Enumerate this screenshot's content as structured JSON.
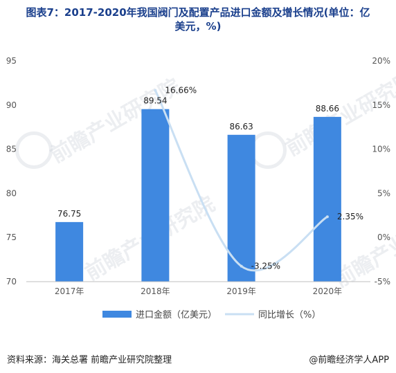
{
  "title_line1": "图表7：2017-2020年我国阀门及配置产品进口金额及增长情况(单位：亿",
  "title_line2": "美元，%)",
  "watermark": "前瞻产业研究院",
  "source": "资料来源：海关总署 前瞻产业研究院整理",
  "brand": "@前瞻经济学人APP",
  "colors": {
    "bar": "#3f88e0",
    "line": "#c9dff3",
    "title": "#1a3f8c"
  },
  "chart_data": {
    "type": "bar+line",
    "categories": [
      "2017年",
      "2018年",
      "2019年",
      "2020年"
    ],
    "series": [
      {
        "name": "进口金额（亿美元）",
        "type": "bar",
        "axis": "left",
        "values": [
          76.75,
          89.54,
          86.63,
          88.66
        ],
        "labels": [
          "76.75",
          "89.54",
          "86.63",
          "88.66"
        ]
      },
      {
        "name": "同比增长（%）",
        "type": "line",
        "axis": "right",
        "values": [
          null,
          16.66,
          -3.25,
          2.35
        ],
        "labels": [
          "",
          "16.66%",
          "-3.25%",
          "2.35%"
        ]
      }
    ],
    "y_left": {
      "min": 70,
      "max": 95,
      "ticks": [
        70,
        75,
        80,
        85,
        90,
        95
      ]
    },
    "y_right": {
      "min": -5,
      "max": 20,
      "ticks": [
        "-5%",
        "0%",
        "5%",
        "10%",
        "15%",
        "20%"
      ]
    },
    "legend_position": "bottom"
  }
}
